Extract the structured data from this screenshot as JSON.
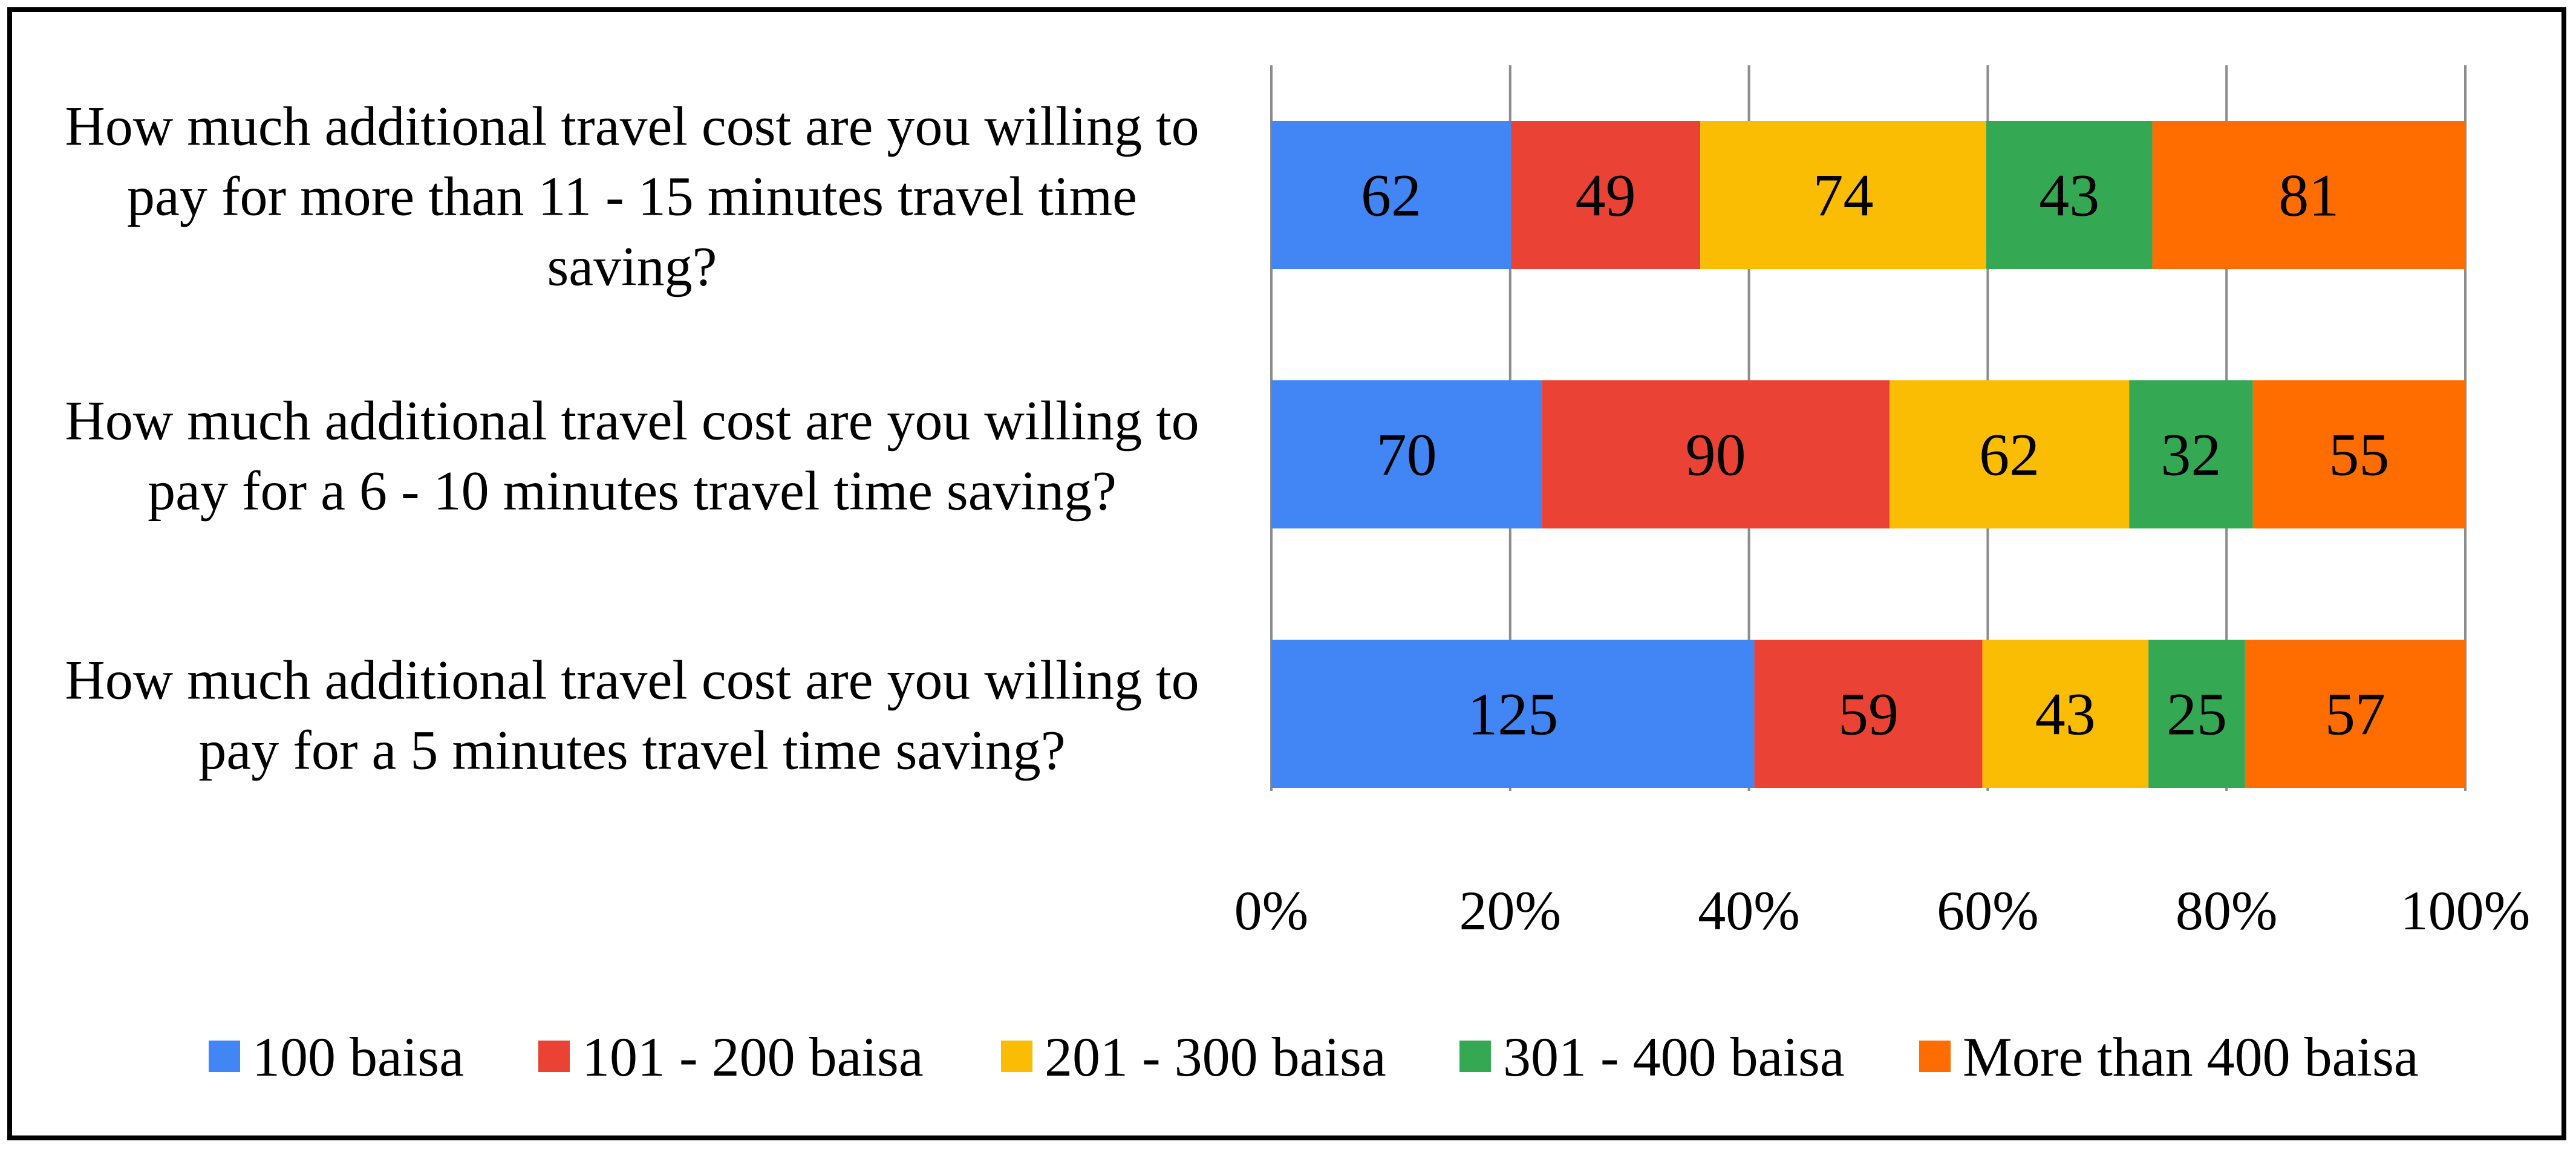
{
  "chart_data": {
    "type": "bar",
    "orientation": "horizontal",
    "stacked": "percent",
    "title": "",
    "xlabel": "",
    "ylabel": "",
    "xlim": [
      0,
      100
    ],
    "x_tick_labels": [
      "0%",
      "20%",
      "40%",
      "60%",
      "80%",
      "100%"
    ],
    "grid": true,
    "legend_position": "bottom",
    "categories": [
      "How much additional travel cost are you willing to pay for more than 11 - 15 minutes travel time saving?",
      "How much additional travel cost are you willing to pay for a 6 - 10 minutes travel time saving?",
      "How much additional travel cost are you willing to pay for a 5 minutes travel time saving?"
    ],
    "category_lines": [
      [
        "How much additional travel cost are you willing to",
        "pay for more than 11 - 15 minutes travel time",
        "saving?"
      ],
      [
        "How much additional travel cost are you willing to",
        "pay for a 6 - 10 minutes travel time saving?"
      ],
      [
        "How much additional travel cost are you willing to",
        "pay for a 5 minutes travel time saving?"
      ]
    ],
    "series": [
      {
        "name": "100 baisa",
        "color": "#4285F4",
        "values": [
          62,
          70,
          125
        ]
      },
      {
        "name": "101 - 200 baisa",
        "color": "#EA4335",
        "values": [
          49,
          90,
          59
        ]
      },
      {
        "name": "201 - 300 baisa",
        "color": "#FBBC04",
        "values": [
          74,
          62,
          43
        ]
      },
      {
        "name": "301 - 400 baisa",
        "color": "#34A853",
        "values": [
          43,
          32,
          25
        ]
      },
      {
        "name": "More than 400 baisa",
        "color": "#FF6D01",
        "values": [
          81,
          55,
          57
        ]
      }
    ]
  }
}
